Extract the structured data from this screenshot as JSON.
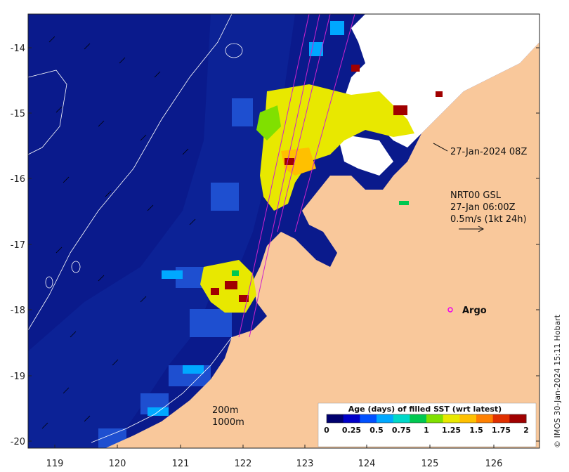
{
  "map": {
    "x_ticks": [
      "119",
      "120",
      "121",
      "122",
      "123",
      "124",
      "125",
      "126"
    ],
    "y_ticks": [
      "-14",
      "-15",
      "-16",
      "-17",
      "-18",
      "-19",
      "-20"
    ],
    "colors": {
      "ocean_deep": "#0a1a8c",
      "ocean_mid": "#1a3ab0",
      "land": "#f9c89b",
      "cloud_gap": "#ffffff",
      "track": "#cc22cc",
      "frame": "#222222"
    }
  },
  "annotations": {
    "track_time": "27-Jan-2024 08Z",
    "current_source": "NRT00 GSL",
    "current_time": "27-Jan 06:00Z",
    "current_scale": "0.5m/s (1kt 24h)",
    "argo_label": "Argo",
    "isobath_200": "200m",
    "isobath_1000": "1000m"
  },
  "colorbar": {
    "title": "Age (days) of filled SST (wrt latest)",
    "ticks": [
      "0",
      "0.25",
      "0.5",
      "0.75",
      "1",
      "1.25",
      "1.5",
      "1.75",
      "2"
    ],
    "colors": [
      "#00006e",
      "#0000c8",
      "#0050ff",
      "#00a8ff",
      "#00d8c8",
      "#00c850",
      "#80e000",
      "#e8e800",
      "#ffc000",
      "#ff8000",
      "#e03000",
      "#a00000"
    ]
  },
  "credit": "© IMOS 30-Jan-2024 15:11 Hobart"
}
